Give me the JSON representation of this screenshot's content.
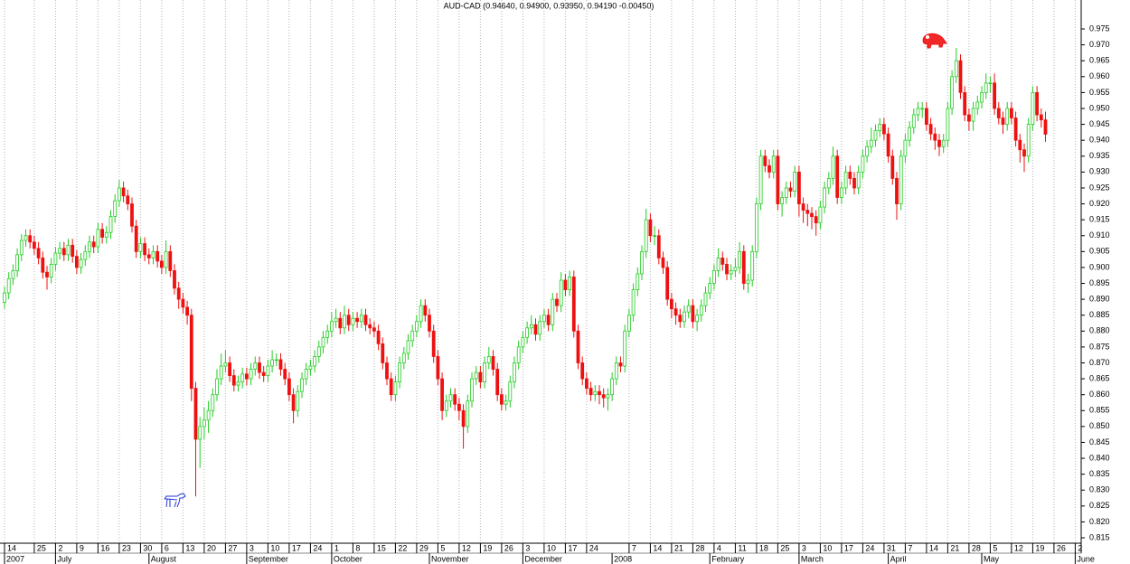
{
  "chart_data": {
    "type": "candlestick",
    "title": "AUD-CAD (0.94640, 0.94900, 0.93950, 0.94190 -0.00450)",
    "up_color": "#22cc22",
    "down_color": "#ee1111",
    "open": [
      0.889,
      0.892,
      0.8965,
      0.899,
      0.904,
      0.9085,
      0.91,
      0.908,
      0.906,
      0.903,
      0.8985,
      0.897,
      0.901,
      0.9045,
      0.906,
      0.904,
      0.907,
      0.9035,
      0.9,
      0.9025,
      0.905,
      0.908,
      0.9065,
      0.912,
      0.9095,
      0.911,
      0.916,
      0.921,
      0.925,
      0.9225,
      0.92,
      0.913,
      0.905,
      0.9075,
      0.904,
      0.903,
      0.905,
      0.902,
      0.9,
      0.905,
      0.899,
      0.8935,
      0.89,
      0.8875,
      0.885,
      0.862,
      0.846,
      0.85,
      0.852,
      0.855,
      0.86,
      0.865,
      0.869,
      0.87,
      0.866,
      0.863,
      0.864,
      0.8665,
      0.865,
      0.868,
      0.87,
      0.867,
      0.866,
      0.869,
      0.871,
      0.871,
      0.868,
      0.865,
      0.86,
      0.855,
      0.861,
      0.865,
      0.868,
      0.869,
      0.872,
      0.875,
      0.878,
      0.88,
      0.883,
      0.884,
      0.881,
      0.885,
      0.882,
      0.884,
      0.883,
      0.885,
      0.882,
      0.881,
      0.88,
      0.876,
      0.87,
      0.865,
      0.86,
      0.864,
      0.87,
      0.873,
      0.877,
      0.88,
      0.883,
      0.888,
      0.885,
      0.88,
      0.872,
      0.865,
      0.855,
      0.858,
      0.86,
      0.857,
      0.855,
      0.85,
      0.858,
      0.865,
      0.867,
      0.864,
      0.87,
      0.872,
      0.868,
      0.86,
      0.857,
      0.858,
      0.864,
      0.87,
      0.875,
      0.878,
      0.881,
      0.882,
      0.879,
      0.883,
      0.885,
      0.882,
      0.89,
      0.888,
      0.896,
      0.893,
      0.897,
      0.88,
      0.87,
      0.865,
      0.862,
      0.86,
      0.861,
      0.86,
      0.859,
      0.86,
      0.865,
      0.87,
      0.869,
      0.88,
      0.885,
      0.893,
      0.898,
      0.905,
      0.915,
      0.91,
      0.91,
      0.903,
      0.9,
      0.89,
      0.887,
      0.885,
      0.883,
      0.886,
      0.888,
      0.883,
      0.885,
      0.888,
      0.892,
      0.895,
      0.899,
      0.903,
      0.901,
      0.898,
      0.899,
      0.9,
      0.905,
      0.895,
      0.896,
      0.905,
      0.92,
      0.935,
      0.932,
      0.93,
      0.935,
      0.92,
      0.922,
      0.925,
      0.924,
      0.93,
      0.92,
      0.918,
      0.917,
      0.916,
      0.914,
      0.919,
      0.925,
      0.928,
      0.935,
      0.922,
      0.925,
      0.93,
      0.928,
      0.925,
      0.93,
      0.935,
      0.938,
      0.94,
      0.943,
      0.945,
      0.942,
      0.935,
      0.928,
      0.92,
      0.935,
      0.94,
      0.944,
      0.948,
      0.95,
      0.95,
      0.945,
      0.942,
      0.94,
      0.938,
      0.94,
      0.95,
      0.96,
      0.965,
      0.955,
      0.948,
      0.946,
      0.95,
      0.952,
      0.955,
      0.958,
      0.958,
      0.95,
      0.947,
      0.945,
      0.95,
      0.947,
      0.94,
      0.937,
      0.935,
      0.945,
      0.955,
      0.948,
      0.9464
    ],
    "high": [
      0.894,
      0.8985,
      0.901,
      0.906,
      0.9105,
      0.912,
      0.912,
      0.91,
      0.908,
      0.905,
      0.9005,
      0.903,
      0.9065,
      0.908,
      0.908,
      0.909,
      0.909,
      0.9055,
      0.9045,
      0.907,
      0.91,
      0.91,
      0.914,
      0.914,
      0.913,
      0.918,
      0.923,
      0.9275,
      0.927,
      0.9245,
      0.922,
      0.915,
      0.9095,
      0.9095,
      0.906,
      0.907,
      0.907,
      0.904,
      0.9085,
      0.907,
      0.901,
      0.8955,
      0.892,
      0.8895,
      0.887,
      0.864,
      0.853,
      0.856,
      0.858,
      0.862,
      0.868,
      0.873,
      0.874,
      0.872,
      0.868,
      0.866,
      0.8685,
      0.8685,
      0.87,
      0.872,
      0.872,
      0.869,
      0.871,
      0.874,
      0.873,
      0.873,
      0.87,
      0.867,
      0.862,
      0.863,
      0.867,
      0.87,
      0.871,
      0.874,
      0.877,
      0.88,
      0.882,
      0.886,
      0.887,
      0.886,
      0.888,
      0.887,
      0.886,
      0.886,
      0.887,
      0.887,
      0.884,
      0.883,
      0.882,
      0.878,
      0.872,
      0.867,
      0.866,
      0.872,
      0.875,
      0.879,
      0.882,
      0.885,
      0.89,
      0.89,
      0.887,
      0.882,
      0.874,
      0.867,
      0.86,
      0.862,
      0.862,
      0.859,
      0.857,
      0.86,
      0.867,
      0.869,
      0.869,
      0.872,
      0.875,
      0.874,
      0.87,
      0.862,
      0.86,
      0.866,
      0.872,
      0.877,
      0.88,
      0.883,
      0.885,
      0.884,
      0.885,
      0.887,
      0.887,
      0.892,
      0.892,
      0.8985,
      0.898,
      0.899,
      0.899,
      0.882,
      0.872,
      0.867,
      0.864,
      0.863,
      0.863,
      0.862,
      0.862,
      0.867,
      0.872,
      0.872,
      0.882,
      0.887,
      0.895,
      0.9,
      0.907,
      0.9185,
      0.917,
      0.913,
      0.912,
      0.905,
      0.902,
      0.892,
      0.889,
      0.887,
      0.888,
      0.89,
      0.89,
      0.887,
      0.89,
      0.894,
      0.897,
      0.901,
      0.906,
      0.905,
      0.903,
      0.901,
      0.903,
      0.908,
      0.907,
      0.898,
      0.907,
      0.922,
      0.937,
      0.937,
      0.934,
      0.937,
      0.937,
      0.924,
      0.927,
      0.927,
      0.932,
      0.932,
      0.922,
      0.92,
      0.919,
      0.918,
      0.921,
      0.927,
      0.93,
      0.938,
      0.937,
      0.927,
      0.932,
      0.932,
      0.93,
      0.932,
      0.937,
      0.94,
      0.944,
      0.945,
      0.947,
      0.947,
      0.944,
      0.937,
      0.93,
      0.937,
      0.942,
      0.946,
      0.95,
      0.952,
      0.952,
      0.952,
      0.947,
      0.944,
      0.942,
      0.942,
      0.952,
      0.962,
      0.969,
      0.967,
      0.957,
      0.95,
      0.952,
      0.954,
      0.957,
      0.961,
      0.96,
      0.961,
      0.952,
      0.949,
      0.952,
      0.952,
      0.949,
      0.942,
      0.939,
      0.947,
      0.957,
      0.957,
      0.95,
      0.949
    ],
    "low": [
      0.887,
      0.89,
      0.8945,
      0.897,
      0.902,
      0.9065,
      0.906,
      0.904,
      0.901,
      0.8965,
      0.893,
      0.895,
      0.899,
      0.9025,
      0.902,
      0.902,
      0.9015,
      0.898,
      0.898,
      0.9005,
      0.903,
      0.9045,
      0.9045,
      0.9075,
      0.9075,
      0.909,
      0.914,
      0.919,
      0.9205,
      0.918,
      0.911,
      0.903,
      0.903,
      0.902,
      0.901,
      0.901,
      0.9,
      0.898,
      0.898,
      0.897,
      0.8915,
      0.887,
      0.8855,
      0.882,
      0.858,
      0.828,
      0.837,
      0.846,
      0.848,
      0.853,
      0.858,
      0.863,
      0.867,
      0.864,
      0.861,
      0.861,
      0.862,
      0.863,
      0.863,
      0.866,
      0.865,
      0.864,
      0.864,
      0.867,
      0.869,
      0.866,
      0.863,
      0.858,
      0.851,
      0.853,
      0.859,
      0.863,
      0.866,
      0.867,
      0.87,
      0.873,
      0.876,
      0.878,
      0.881,
      0.879,
      0.879,
      0.88,
      0.88,
      0.881,
      0.881,
      0.88,
      0.879,
      0.878,
      0.874,
      0.868,
      0.863,
      0.858,
      0.858,
      0.862,
      0.868,
      0.871,
      0.875,
      0.878,
      0.881,
      0.883,
      0.878,
      0.87,
      0.863,
      0.852,
      0.853,
      0.856,
      0.855,
      0.852,
      0.843,
      0.848,
      0.856,
      0.863,
      0.862,
      0.862,
      0.868,
      0.866,
      0.858,
      0.855,
      0.855,
      0.856,
      0.862,
      0.868,
      0.873,
      0.876,
      0.879,
      0.877,
      0.877,
      0.881,
      0.88,
      0.88,
      0.886,
      0.886,
      0.891,
      0.891,
      0.878,
      0.868,
      0.863,
      0.86,
      0.858,
      0.858,
      0.857,
      0.856,
      0.855,
      0.858,
      0.863,
      0.867,
      0.867,
      0.878,
      0.883,
      0.891,
      0.896,
      0.903,
      0.908,
      0.907,
      0.901,
      0.898,
      0.888,
      0.884,
      0.882,
      0.881,
      0.881,
      0.884,
      0.881,
      0.88,
      0.883,
      0.886,
      0.89,
      0.893,
      0.897,
      0.899,
      0.896,
      0.896,
      0.897,
      0.898,
      0.893,
      0.892,
      0.894,
      0.903,
      0.918,
      0.93,
      0.928,
      0.928,
      0.918,
      0.916,
      0.92,
      0.922,
      0.922,
      0.916,
      0.914,
      0.913,
      0.912,
      0.91,
      0.912,
      0.917,
      0.923,
      0.926,
      0.92,
      0.92,
      0.923,
      0.926,
      0.923,
      0.923,
      0.928,
      0.933,
      0.936,
      0.938,
      0.941,
      0.94,
      0.933,
      0.926,
      0.915,
      0.918,
      0.933,
      0.938,
      0.942,
      0.946,
      0.947,
      0.943,
      0.94,
      0.937,
      0.935,
      0.936,
      0.938,
      0.948,
      0.958,
      0.953,
      0.946,
      0.943,
      0.943,
      0.948,
      0.95,
      0.953,
      0.955,
      0.948,
      0.945,
      0.942,
      0.943,
      0.945,
      0.938,
      0.933,
      0.93,
      0.933,
      0.943,
      0.946,
      0.944,
      0.9395
    ],
    "close": [
      0.892,
      0.8965,
      0.899,
      0.904,
      0.9085,
      0.91,
      0.908,
      0.906,
      0.903,
      0.8985,
      0.897,
      0.901,
      0.9045,
      0.906,
      0.904,
      0.907,
      0.9035,
      0.9,
      0.9025,
      0.905,
      0.908,
      0.9065,
      0.912,
      0.9095,
      0.911,
      0.916,
      0.921,
      0.925,
      0.9225,
      0.92,
      0.913,
      0.905,
      0.9075,
      0.904,
      0.903,
      0.905,
      0.902,
      0.9,
      0.905,
      0.899,
      0.8935,
      0.89,
      0.8875,
      0.885,
      0.862,
      0.846,
      0.85,
      0.852,
      0.855,
      0.86,
      0.865,
      0.869,
      0.87,
      0.866,
      0.863,
      0.864,
      0.8665,
      0.865,
      0.868,
      0.87,
      0.867,
      0.866,
      0.869,
      0.871,
      0.871,
      0.868,
      0.865,
      0.86,
      0.855,
      0.861,
      0.865,
      0.868,
      0.869,
      0.872,
      0.875,
      0.878,
      0.88,
      0.883,
      0.884,
      0.881,
      0.885,
      0.882,
      0.884,
      0.883,
      0.885,
      0.882,
      0.881,
      0.88,
      0.876,
      0.87,
      0.865,
      0.86,
      0.864,
      0.87,
      0.873,
      0.877,
      0.88,
      0.883,
      0.888,
      0.885,
      0.88,
      0.872,
      0.865,
      0.855,
      0.858,
      0.86,
      0.857,
      0.855,
      0.85,
      0.858,
      0.865,
      0.867,
      0.864,
      0.87,
      0.872,
      0.868,
      0.86,
      0.857,
      0.858,
      0.864,
      0.87,
      0.875,
      0.878,
      0.881,
      0.882,
      0.879,
      0.883,
      0.885,
      0.882,
      0.89,
      0.888,
      0.896,
      0.893,
      0.897,
      0.88,
      0.87,
      0.865,
      0.862,
      0.86,
      0.861,
      0.86,
      0.859,
      0.86,
      0.865,
      0.87,
      0.869,
      0.88,
      0.885,
      0.893,
      0.898,
      0.905,
      0.915,
      0.91,
      0.91,
      0.903,
      0.9,
      0.89,
      0.887,
      0.885,
      0.883,
      0.886,
      0.888,
      0.883,
      0.885,
      0.888,
      0.892,
      0.895,
      0.899,
      0.903,
      0.901,
      0.898,
      0.899,
      0.9,
      0.905,
      0.895,
      0.896,
      0.905,
      0.92,
      0.935,
      0.932,
      0.93,
      0.935,
      0.92,
      0.922,
      0.925,
      0.924,
      0.93,
      0.92,
      0.918,
      0.917,
      0.916,
      0.914,
      0.919,
      0.925,
      0.928,
      0.935,
      0.922,
      0.925,
      0.93,
      0.928,
      0.925,
      0.93,
      0.935,
      0.938,
      0.94,
      0.943,
      0.945,
      0.942,
      0.935,
      0.928,
      0.92,
      0.935,
      0.94,
      0.944,
      0.948,
      0.95,
      0.95,
      0.945,
      0.942,
      0.94,
      0.938,
      0.94,
      0.95,
      0.96,
      0.965,
      0.955,
      0.948,
      0.946,
      0.95,
      0.952,
      0.955,
      0.958,
      0.958,
      0.95,
      0.947,
      0.945,
      0.95,
      0.947,
      0.94,
      0.937,
      0.935,
      0.945,
      0.955,
      0.948,
      0.9464,
      0.9419
    ],
    "ylim": [
      0.8133,
      0.9841
    ],
    "yticks": [
      0.815,
      {
        "value": 0.82,
        "label": "0.820"
      },
      0.825,
      {
        "value": 0.83,
        "label": "0.830"
      },
      0.835,
      {
        "value": 0.84,
        "label": "0.840"
      },
      0.845,
      {
        "value": 0.85,
        "label": "0.850"
      },
      0.855,
      {
        "value": 0.86,
        "label": "0.860"
      },
      0.865,
      {
        "value": 0.87,
        "label": "0.870"
      },
      0.875,
      {
        "value": 0.88,
        "label": "0.880"
      },
      0.885,
      {
        "value": 0.89,
        "label": "0.890"
      },
      0.895,
      {
        "value": 0.9,
        "label": "0.900"
      },
      0.905,
      {
        "value": 0.91,
        "label": "0.910"
      },
      0.915,
      {
        "value": 0.92,
        "label": "0.920"
      },
      0.925,
      {
        "value": 0.93,
        "label": "0.930"
      },
      0.935,
      {
        "value": 0.94,
        "label": "0.940"
      },
      0.945,
      {
        "value": 0.95,
        "label": "0.950"
      },
      0.955,
      {
        "value": 0.96,
        "label": "0.960"
      },
      0.965,
      {
        "value": 0.97,
        "label": "0.970"
      },
      0.975
    ],
    "xticks": [
      {
        "value": 0,
        "label": "14"
      },
      {
        "value": 7,
        "label": "25"
      },
      {
        "value": 12,
        "label": "2"
      },
      {
        "value": 17,
        "label": "9"
      },
      {
        "value": 22,
        "label": "16"
      },
      {
        "value": 27,
        "label": "23"
      },
      {
        "value": 32,
        "label": "30"
      },
      {
        "value": 37,
        "label": "6"
      },
      {
        "value": 42,
        "label": "13"
      },
      {
        "value": 47,
        "label": "20"
      },
      {
        "value": 52,
        "label": "27"
      },
      {
        "value": 57,
        "label": "3"
      },
      {
        "value": 62,
        "label": "10"
      },
      {
        "value": 67,
        "label": "17"
      },
      {
        "value": 72,
        "label": "24"
      },
      {
        "value": 77,
        "label": "1"
      },
      {
        "value": 82,
        "label": "8"
      },
      {
        "value": 87,
        "label": "15"
      },
      {
        "value": 92,
        "label": "22"
      },
      {
        "value": 97,
        "label": "29"
      },
      {
        "value": 102,
        "label": "5"
      },
      {
        "value": 107,
        "label": "12"
      },
      {
        "value": 112,
        "label": "19"
      },
      {
        "value": 117,
        "label": "26"
      },
      {
        "value": 122,
        "label": "3"
      },
      {
        "value": 127,
        "label": "10"
      },
      {
        "value": 132,
        "label": "17"
      },
      {
        "value": 137,
        "label": "24"
      },
      {
        "value": 147,
        "label": "7"
      },
      {
        "value": 152,
        "label": "14"
      },
      {
        "value": 157,
        "label": "21"
      },
      {
        "value": 162,
        "label": "28"
      },
      {
        "value": 167,
        "label": "4"
      },
      {
        "value": 172,
        "label": "11"
      },
      {
        "value": 177,
        "label": "18"
      },
      {
        "value": 182,
        "label": "25"
      },
      {
        "value": 187,
        "label": "3"
      },
      {
        "value": 192,
        "label": "10"
      },
      {
        "value": 197,
        "label": "17"
      },
      {
        "value": 202,
        "label": "24"
      },
      {
        "value": 207,
        "label": "31"
      },
      {
        "value": 212,
        "label": "7"
      },
      {
        "value": 217,
        "label": "14"
      },
      {
        "value": 222,
        "label": "21"
      },
      {
        "value": 227,
        "label": "28"
      },
      {
        "value": 232,
        "label": "5"
      },
      {
        "value": 237,
        "label": "12"
      },
      {
        "value": 242,
        "label": "19"
      },
      {
        "value": 247,
        "label": "26"
      },
      {
        "value": 252,
        "label": "2"
      }
    ],
    "month_labels": [
      {
        "value": 0,
        "label": "2007"
      },
      {
        "value": 12,
        "label": "July"
      },
      {
        "value": 34,
        "label": "August"
      },
      {
        "value": 57,
        "label": "September"
      },
      {
        "value": 77,
        "label": "October"
      },
      {
        "value": 100,
        "label": "November"
      },
      {
        "value": 122,
        "label": "December"
      },
      {
        "value": 143,
        "label": "2008"
      },
      {
        "value": 166,
        "label": "February"
      },
      {
        "value": 187,
        "label": "March"
      },
      {
        "value": 208,
        "label": "April"
      },
      {
        "value": 230,
        "label": "May"
      },
      {
        "value": 252,
        "label": "June"
      }
    ],
    "grid": true
  }
}
